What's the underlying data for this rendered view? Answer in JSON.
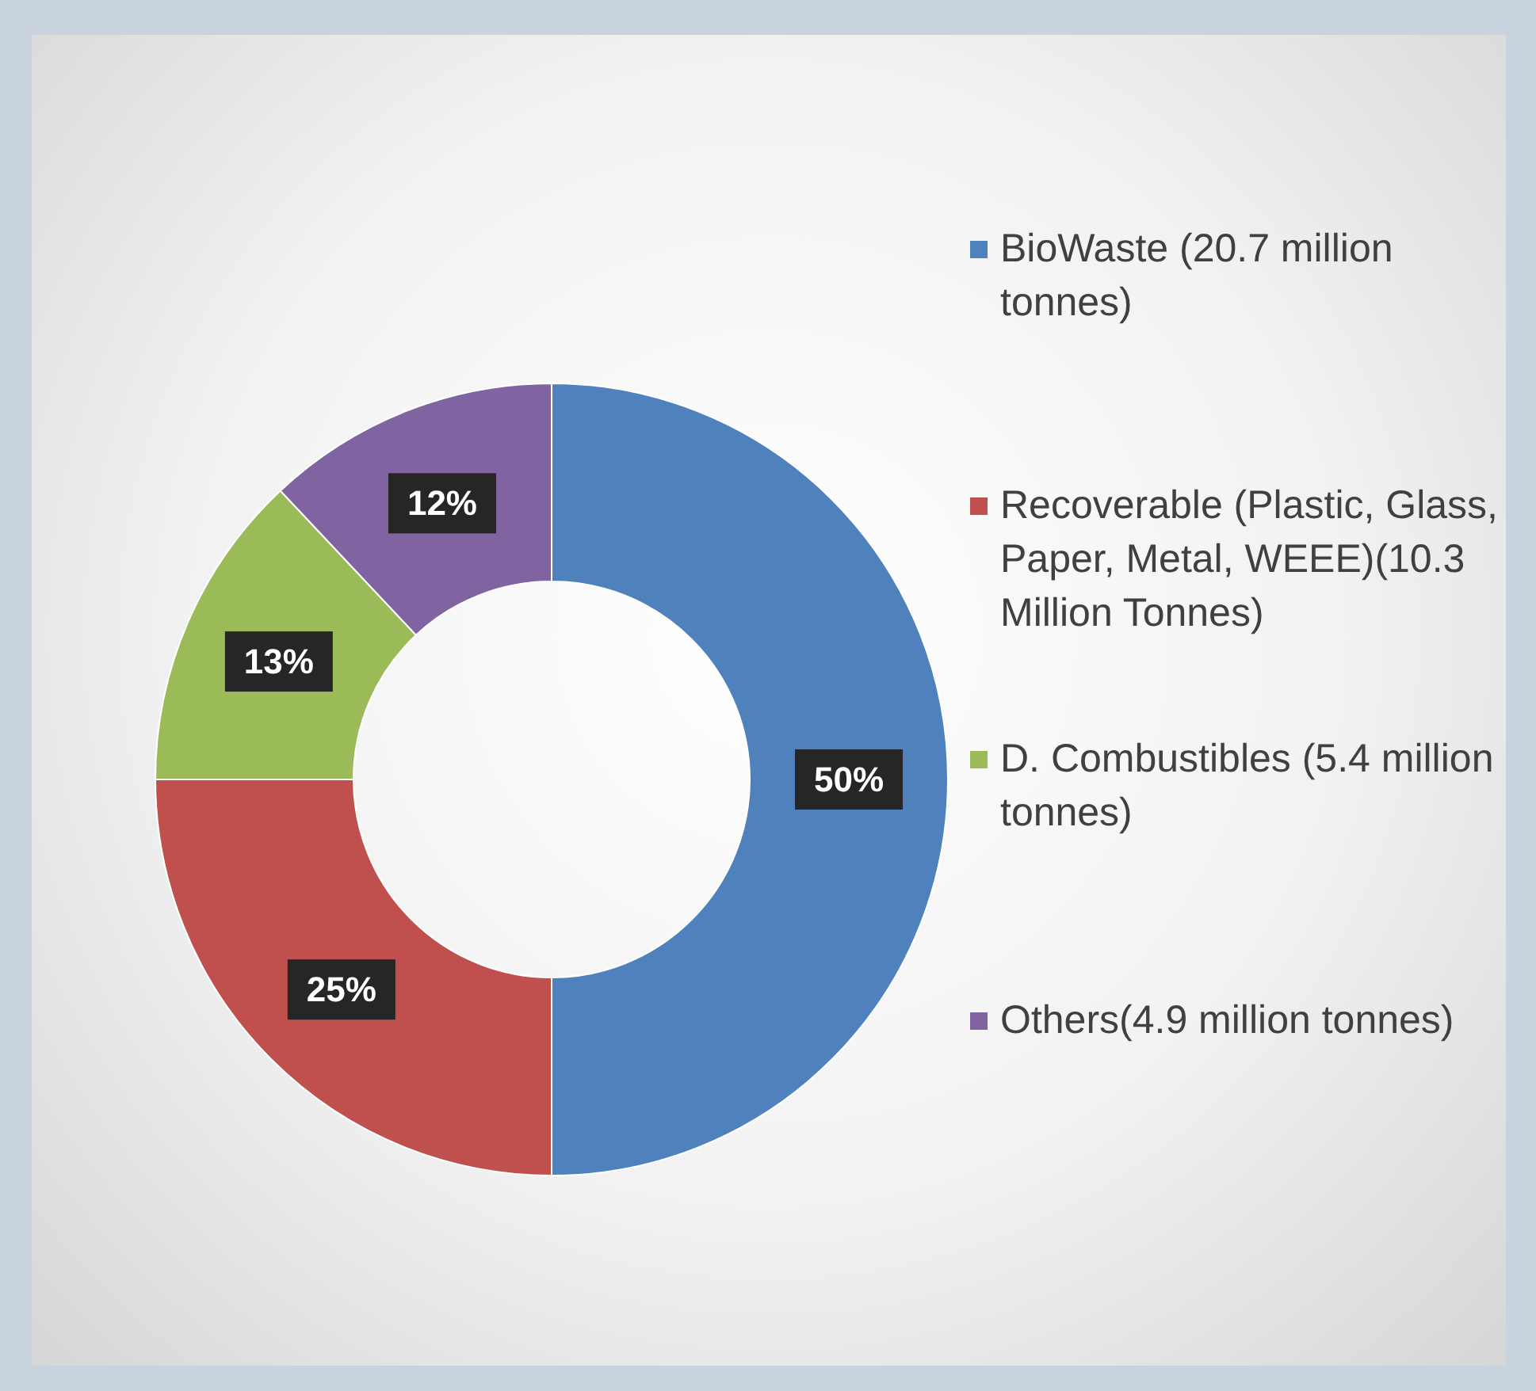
{
  "chart_data": {
    "type": "donut",
    "categories": [
      "BioWaste (20.7 million tonnes)",
      "Recoverable (Plastic, Glass, Paper, Metal, WEEE)(10.3 Million Tonnes)",
      "D. Combustibles (5.4 million tonnes)",
      "Others(4.9 million tonnes)"
    ],
    "values": [
      50,
      25,
      13,
      12
    ],
    "colors": [
      "#4f81bd",
      "#c0504d",
      "#9bbb59",
      "#8064a2"
    ],
    "value_labels": [
      "50%",
      "25%",
      "13%",
      "12%"
    ],
    "legend": "right"
  }
}
